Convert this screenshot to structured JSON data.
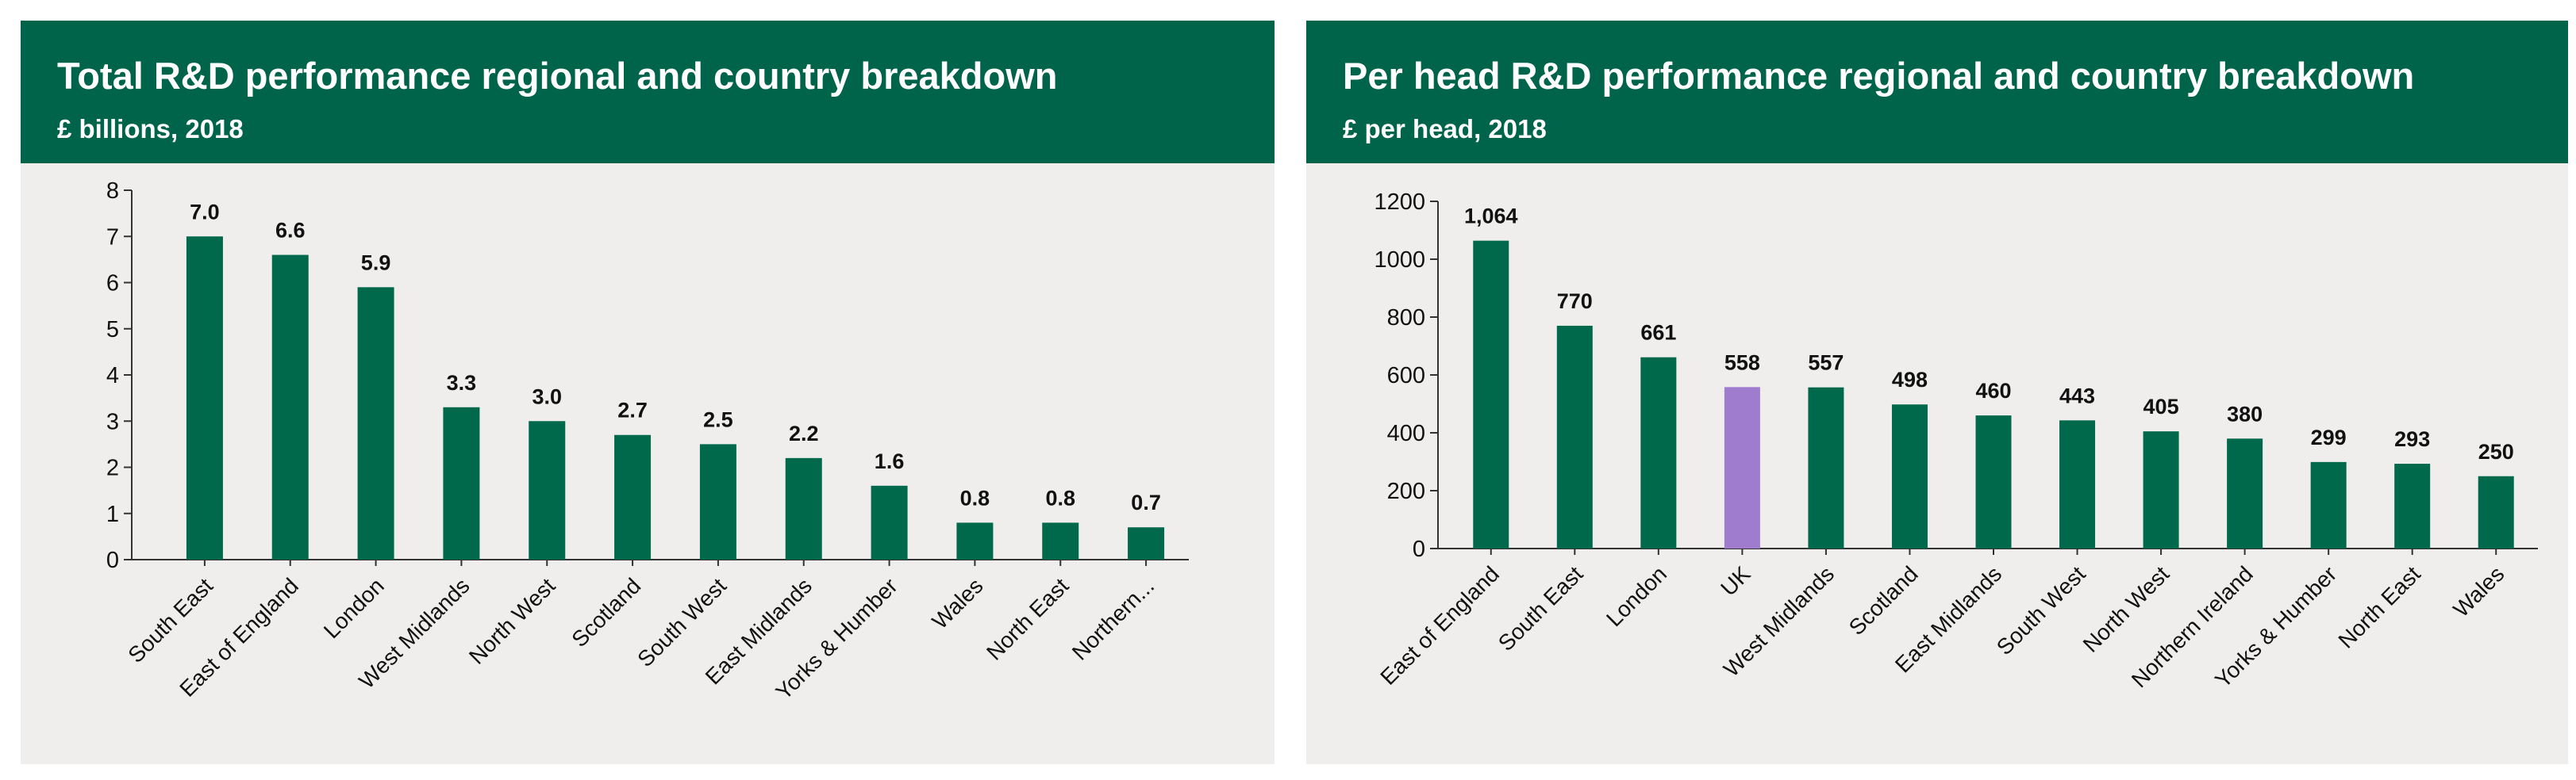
{
  "colors": {
    "header_bg": "#00644a",
    "panel_bg": "#efeeed",
    "bar": "#00694b",
    "highlight_bar": "#a07ccf",
    "axis": "#333333"
  },
  "chart_data": [
    {
      "type": "bar",
      "title": "Total R&D performance regional and country breakdown",
      "subtitle": "£ billions, 2018",
      "xlabel": "",
      "ylabel": "",
      "ylim": [
        0,
        8
      ],
      "yticks": [
        0,
        1,
        2,
        3,
        4,
        5,
        6,
        7,
        8
      ],
      "grid": false,
      "categories": [
        "South East",
        "East of England",
        "London",
        "West Midlands",
        "North West",
        "Scotland",
        "South West",
        "East Midlands",
        "Yorks & Humber",
        "Wales",
        "North East",
        "Northern..."
      ],
      "values": [
        7.0,
        6.6,
        5.9,
        3.3,
        3.0,
        2.7,
        2.5,
        2.2,
        1.6,
        0.8,
        0.8,
        0.7
      ],
      "value_labels": [
        "7.0",
        "6.6",
        "5.9",
        "3.3",
        "3.0",
        "2.7",
        "2.5",
        "2.2",
        "1.6",
        "0.8",
        "0.8",
        "0.7"
      ],
      "highlight": []
    },
    {
      "type": "bar",
      "title": "Per head R&D performance regional and country breakdown",
      "subtitle": "£ per head, 2018",
      "xlabel": "",
      "ylabel": "",
      "ylim": [
        0,
        1200
      ],
      "yticks": [
        0,
        200,
        400,
        600,
        800,
        1000,
        1200
      ],
      "grid": false,
      "categories": [
        "East of England",
        "South East",
        "London",
        "UK",
        "West Midlands",
        "Scotland",
        "East Midlands",
        "South West",
        "North West",
        "Northern Ireland",
        "Yorks & Humber",
        "North East",
        "Wales"
      ],
      "values": [
        1064,
        770,
        661,
        558,
        557,
        498,
        460,
        443,
        405,
        380,
        299,
        293,
        250
      ],
      "value_labels": [
        "1,064",
        "770",
        "661",
        "558",
        "557",
        "498",
        "460",
        "443",
        "405",
        "380",
        "299",
        "293",
        "250"
      ],
      "highlight": [
        "UK"
      ]
    }
  ]
}
